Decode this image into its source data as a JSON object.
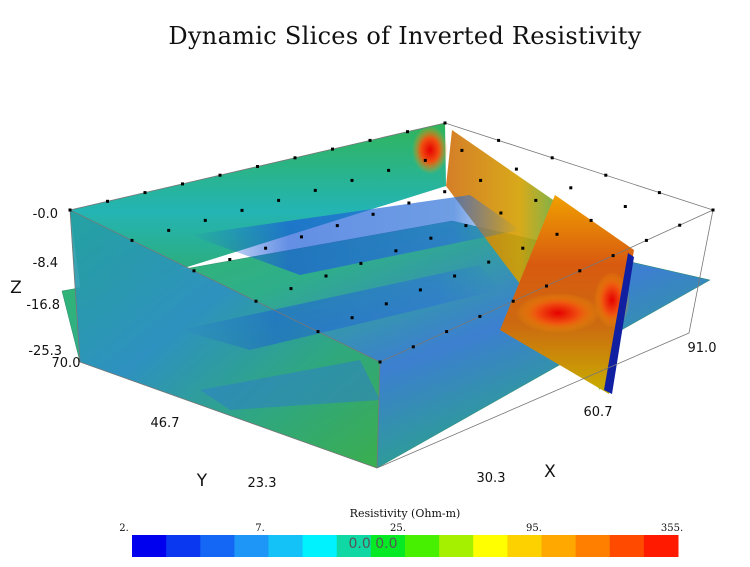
{
  "chart_data": {
    "type": "3d-slice",
    "title": "Dynamic Slices of Inverted Resistivity",
    "axes": {
      "x": {
        "label": "X",
        "ticks": [
          "30.3",
          "60.7",
          "91.0"
        ]
      },
      "y": {
        "label": "Y",
        "ticks": [
          "23.3",
          "46.7",
          "70.0"
        ]
      },
      "z": {
        "label": "Z",
        "ticks": [
          "-0.0",
          "-8.4",
          "-16.8",
          "-25.3"
        ]
      }
    },
    "colorbar": {
      "label": "Resistivity (Ohm-m)",
      "tick_labels": [
        "2.",
        "7.",
        "25.",
        "95.",
        "355."
      ],
      "center_text": "0.0 0.0",
      "scale": "log",
      "colors": [
        "#0000ee",
        "#0a37f0",
        "#1466f5",
        "#1e96f7",
        "#14c2f8",
        "#00f2ff",
        "#10d8a4",
        "#06ea25",
        "#46f000",
        "#a4f000",
        "#ffff00",
        "#fdd000",
        "#ffa800",
        "#ff7f00",
        "#ff4a00",
        "#ff1a00"
      ]
    }
  }
}
